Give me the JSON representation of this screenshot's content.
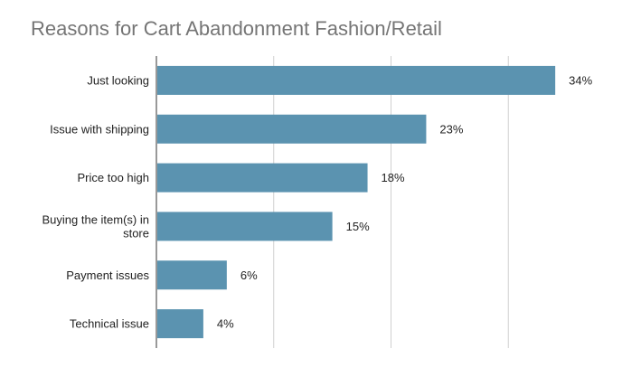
{
  "chart_data": {
    "type": "bar",
    "orientation": "horizontal",
    "title": "Reasons for Cart Abandonment Fashion/Retail",
    "categories": [
      [
        "Just looking"
      ],
      [
        "Issue with shipping"
      ],
      [
        "Price too high"
      ],
      [
        "Buying the item(s) in",
        "store"
      ],
      [
        "Payment issues"
      ],
      [
        "Technical issue"
      ]
    ],
    "values": [
      34,
      23,
      18,
      15,
      6,
      4
    ],
    "value_labels": [
      "34%",
      "23%",
      "18%",
      "15%",
      "6%",
      "4%"
    ],
    "xlim": [
      0,
      40
    ],
    "gridlines_at": [
      10,
      20,
      30
    ],
    "grid": true,
    "bar_color": "#5b93b0",
    "legend": "none"
  }
}
